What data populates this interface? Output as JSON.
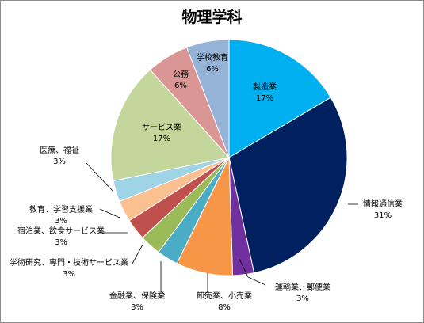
{
  "chart_data": {
    "type": "pie",
    "title": "物理学科",
    "labels": [
      "製造業",
      "情報通信業",
      "運輸業、郵便業",
      "卸売業、小売業",
      "金融業、保険業",
      "学術研究、専門・技術サービス業",
      "宿泊業、飲食サービス業",
      "教育、学習支援業",
      "医療、福祉",
      "サービス業",
      "公務",
      "学校教育"
    ],
    "values": [
      17,
      31,
      3,
      8,
      3,
      3,
      3,
      3,
      3,
      17,
      6,
      6
    ],
    "value_labels": [
      "17%",
      "31%",
      "3%",
      "8%",
      "3%",
      "3%",
      "3%",
      "3%",
      "3%",
      "17%",
      "6%",
      "6%"
    ],
    "colors": [
      "#00b0f0",
      "#002060",
      "#7030a0",
      "#f79646",
      "#4bacc6",
      "#9bbb59",
      "#c0504d",
      "#fac090",
      "#9fd3e6",
      "#c3d69b",
      "#da9694",
      "#95b3d7"
    ],
    "start_angle_deg": 0,
    "direction": "clockwise",
    "legend": "none"
  }
}
